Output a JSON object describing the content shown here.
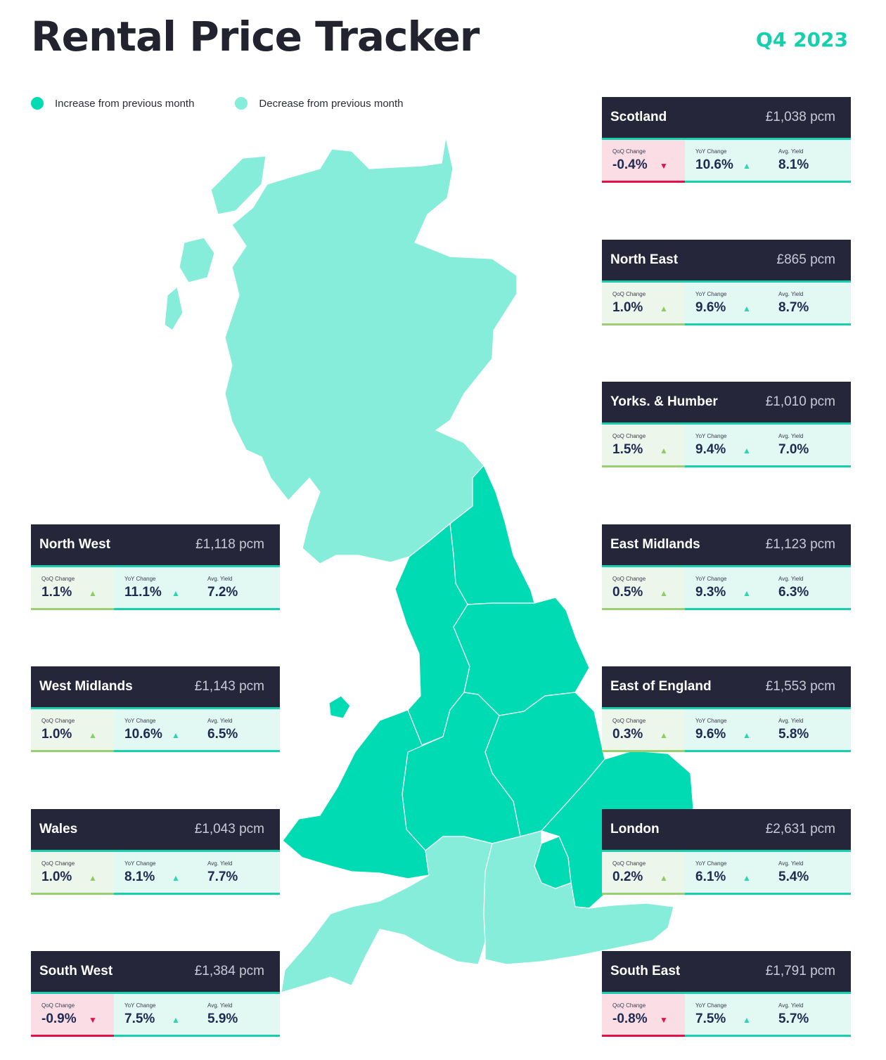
{
  "header": {
    "title": "Rental Price Tracker",
    "period": "Q4 2023"
  },
  "legend": [
    {
      "label": "Increase from previous month",
      "color": "#00dbb4"
    },
    {
      "label": "Decrease from previous month",
      "color": "#85edda"
    }
  ],
  "colors": {
    "increase": "#00dbb4",
    "decrease": "#85edda",
    "header_bg": "#26263a",
    "accent": "#16cfac",
    "negative": "#e2114a",
    "positive": "#8ccc62"
  },
  "stat_labels": {
    "qoq": "QoQ Change",
    "yoy": "YoY Change",
    "yield": "Avg. Yield"
  },
  "regions": {
    "scotland": {
      "name": "Scotland",
      "rent": "£1,038 pcm",
      "qoq": "-0.4%",
      "qoq_dir": "down",
      "yoy": "10.6%",
      "yield": "8.1%"
    },
    "north_east": {
      "name": "North East",
      "rent": "£865 pcm",
      "qoq": "1.0%",
      "qoq_dir": "up",
      "yoy": "9.6%",
      "yield": "8.7%"
    },
    "yorks": {
      "name": "Yorks. & Humber",
      "rent": "£1,010 pcm",
      "qoq": "1.5%",
      "qoq_dir": "up",
      "yoy": "9.4%",
      "yield": "7.0%"
    },
    "east_mid": {
      "name": "East Midlands",
      "rent": "£1,123 pcm",
      "qoq": "0.5%",
      "qoq_dir": "up",
      "yoy": "9.3%",
      "yield": "6.3%"
    },
    "east_eng": {
      "name": "East of England",
      "rent": "£1,553 pcm",
      "qoq": "0.3%",
      "qoq_dir": "up",
      "yoy": "9.6%",
      "yield": "5.8%"
    },
    "london": {
      "name": "London",
      "rent": "£2,631 pcm",
      "qoq": "0.2%",
      "qoq_dir": "up",
      "yoy": "6.1%",
      "yield": "5.4%"
    },
    "south_east": {
      "name": "South East",
      "rent": "£1,791 pcm",
      "qoq": "-0.8%",
      "qoq_dir": "down",
      "yoy": "7.5%",
      "yield": "5.7%"
    },
    "north_west": {
      "name": "North West",
      "rent": "£1,118 pcm",
      "qoq": "1.1%",
      "qoq_dir": "up",
      "yoy": "11.1%",
      "yield": "7.2%"
    },
    "west_mid": {
      "name": "West Midlands",
      "rent": "£1,143 pcm",
      "qoq": "1.0%",
      "qoq_dir": "up",
      "yoy": "10.6%",
      "yield": "6.5%"
    },
    "wales": {
      "name": "Wales",
      "rent": "£1,043 pcm",
      "qoq": "1.0%",
      "qoq_dir": "up",
      "yoy": "8.1%",
      "yield": "7.7%"
    },
    "south_west": {
      "name": "South West",
      "rent": "£1,384 pcm",
      "qoq": "-0.9%",
      "qoq_dir": "down",
      "yoy": "7.5%",
      "yield": "5.9%"
    }
  },
  "map_fill": {
    "scotland": "decrease",
    "north_east": "increase",
    "north_west": "increase",
    "yorks": "increase",
    "east_mid": "increase",
    "west_mid": "increase",
    "east_eng": "increase",
    "wales": "increase",
    "london": "increase",
    "south_east": "decrease",
    "south_west": "decrease"
  }
}
